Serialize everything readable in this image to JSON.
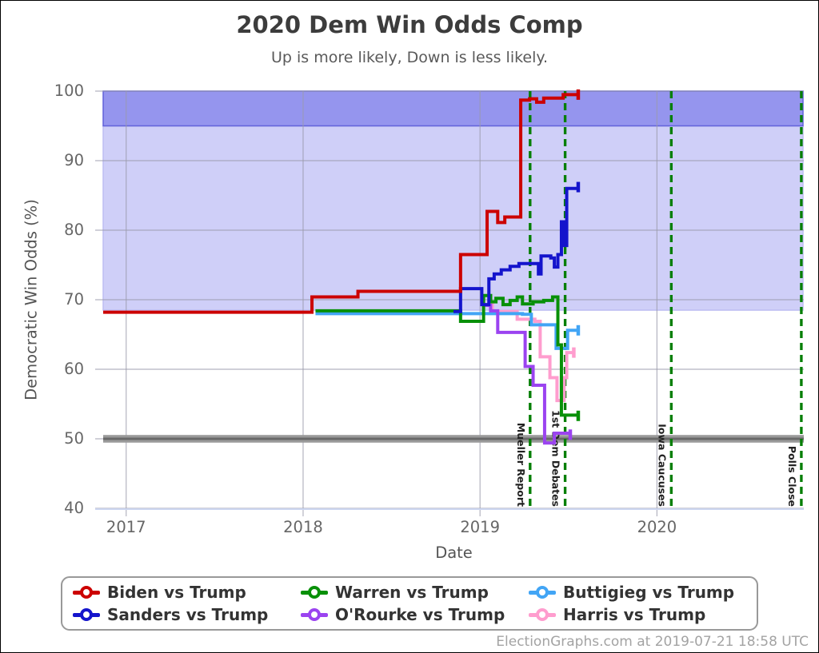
{
  "title": "2020 Dem Win Odds Comp",
  "subtitle": "Up is more likely, Down is less likely.",
  "attribution": "ElectionGraphs.com at 2019-07-21 18:58 UTC",
  "chart_data": {
    "type": "line",
    "title": "2020 Dem Win Odds Comp",
    "subtitle": "Up is more likely, Down is less likely.",
    "xlabel": "Date",
    "ylabel": "Democratic Win Odds (%)",
    "x_domain": [
      2016.87,
      2020.83
    ],
    "ylim": [
      40,
      100
    ],
    "y_ticks": [
      100,
      90,
      80,
      70,
      60,
      50,
      40
    ],
    "x_ticks": [
      2017,
      2018,
      2019,
      2020
    ],
    "grid": true,
    "legend_position": "bottom",
    "grid_color": "#9b9bab",
    "axis_line_color": "#ccd6f0",
    "bands": [
      {
        "name": "safe-zone-light",
        "from": 68.5,
        "to": 95,
        "color": "#cfcff8",
        "border": "#bdbdf2"
      },
      {
        "name": "safe-zone-dark",
        "from": 95,
        "to": 100,
        "color": "#9595ee",
        "border": "#6262da"
      }
    ],
    "reference_line": {
      "value": 50,
      "band_from": 49.45,
      "band_to": 50.55,
      "band_color": "#9a9a9a",
      "line_color": "#696969"
    },
    "event_line_color": "#077f07",
    "events": [
      {
        "label": "Mueller Report",
        "x": 2019.283
      },
      {
        "label": "1st Dem Debates",
        "x": 2019.481
      },
      {
        "label": "Iowa Caucuses",
        "x": 2020.081
      },
      {
        "label": "Polls Close",
        "x": 2020.816
      }
    ],
    "series": [
      {
        "name": "Biden vs Trump",
        "key": "biden",
        "color": "#cc0000",
        "points": [
          [
            2016.87,
            68.2
          ],
          [
            2018.05,
            70.4
          ],
          [
            2018.31,
            71.2
          ],
          [
            2018.89,
            76.5
          ],
          [
            2019.04,
            82.7
          ],
          [
            2019.1,
            81.1
          ],
          [
            2019.14,
            81.9
          ],
          [
            2019.23,
            98.7
          ],
          [
            2019.28,
            98.9
          ],
          [
            2019.32,
            98.4
          ],
          [
            2019.36,
            99.0
          ],
          [
            2019.47,
            99.5
          ],
          [
            2019.555,
            99.5
          ]
        ]
      },
      {
        "name": "Sanders vs Trump",
        "key": "sanders",
        "color": "#1414cc",
        "points": [
          [
            2018.85,
            68.3
          ],
          [
            2018.89,
            71.6
          ],
          [
            2019.01,
            69.3
          ],
          [
            2019.05,
            73.0
          ],
          [
            2019.08,
            73.7
          ],
          [
            2019.12,
            74.3
          ],
          [
            2019.17,
            74.8
          ],
          [
            2019.22,
            75.2
          ],
          [
            2019.33,
            73.7
          ],
          [
            2019.345,
            76.3
          ],
          [
            2019.4,
            76.0
          ],
          [
            2019.42,
            74.7
          ],
          [
            2019.44,
            76.5
          ],
          [
            2019.46,
            81.2
          ],
          [
            2019.475,
            77.8
          ],
          [
            2019.49,
            86.0
          ],
          [
            2019.555,
            86.2
          ]
        ]
      },
      {
        "name": "Warren vs Trump",
        "key": "warren",
        "color": "#089008",
        "points": [
          [
            2018.07,
            68.4
          ],
          [
            2018.89,
            66.9
          ],
          [
            2019.02,
            70.6
          ],
          [
            2019.06,
            69.7
          ],
          [
            2019.09,
            70.2
          ],
          [
            2019.13,
            69.3
          ],
          [
            2019.17,
            69.9
          ],
          [
            2019.21,
            70.4
          ],
          [
            2019.24,
            69.4
          ],
          [
            2019.3,
            69.7
          ],
          [
            2019.36,
            69.9
          ],
          [
            2019.41,
            70.4
          ],
          [
            2019.44,
            63.5
          ],
          [
            2019.46,
            53.4
          ],
          [
            2019.555,
            53.3
          ]
        ]
      },
      {
        "name": "O'Rourke vs Trump",
        "key": "orourke",
        "color": "#9b43f0",
        "points": [
          [
            2019.02,
            69.2
          ],
          [
            2019.06,
            68.4
          ],
          [
            2019.1,
            65.3
          ],
          [
            2019.255,
            60.4
          ],
          [
            2019.3,
            57.7
          ],
          [
            2019.365,
            49.4
          ],
          [
            2019.42,
            50.8
          ],
          [
            2019.51,
            50.6
          ]
        ]
      },
      {
        "name": "Buttigieg vs Trump",
        "key": "buttigieg",
        "color": "#42a5f5",
        "points": [
          [
            2018.07,
            68.0
          ],
          [
            2019.24,
            67.9
          ],
          [
            2019.29,
            66.4
          ],
          [
            2019.43,
            63.0
          ],
          [
            2019.495,
            65.6
          ],
          [
            2019.555,
            65.6
          ]
        ]
      },
      {
        "name": "Harris vs Trump",
        "key": "harris",
        "color": "#ff9dce",
        "points": [
          [
            2019.02,
            69.3
          ],
          [
            2019.07,
            68.3
          ],
          [
            2019.21,
            67.2
          ],
          [
            2019.31,
            66.9
          ],
          [
            2019.34,
            61.8
          ],
          [
            2019.395,
            58.8
          ],
          [
            2019.435,
            55.5
          ],
          [
            2019.475,
            58.8
          ],
          [
            2019.49,
            62.4
          ],
          [
            2019.53,
            62.4
          ]
        ]
      }
    ]
  }
}
